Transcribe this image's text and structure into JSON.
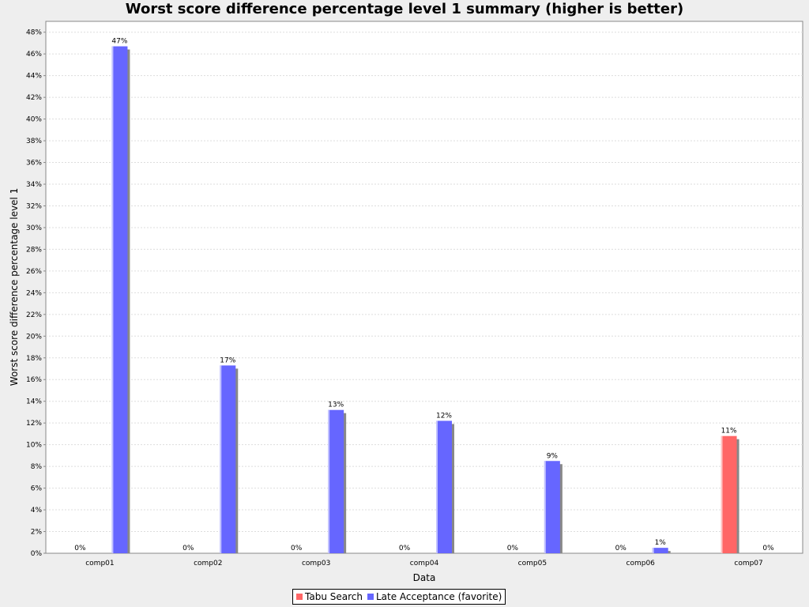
{
  "chart_data": {
    "type": "bar",
    "title": "Worst score difference percentage level 1 summary (higher is better)",
    "xlabel": "Data",
    "ylabel": "Worst score difference percentage level 1",
    "categories": [
      "comp01",
      "comp02",
      "comp03",
      "comp04",
      "comp05",
      "comp06",
      "comp07"
    ],
    "series": [
      {
        "name": "Tabu Search",
        "color": "#ff6666",
        "values": [
          0,
          0,
          0,
          0,
          0,
          0,
          10.8
        ],
        "labels": [
          "0%",
          "0%",
          "0%",
          "0%",
          "0%",
          "0%",
          "11%"
        ]
      },
      {
        "name": "Late Acceptance (favorite)",
        "color": "#6666ff",
        "values": [
          46.7,
          17.3,
          13.2,
          12.2,
          8.5,
          0.5,
          0
        ],
        "labels": [
          "47%",
          "17%",
          "13%",
          "12%",
          "9%",
          "1%",
          "0%"
        ]
      }
    ],
    "ylim": [
      0,
      49
    ],
    "yticks": [
      0,
      2,
      4,
      6,
      8,
      10,
      12,
      14,
      16,
      18,
      20,
      22,
      24,
      26,
      28,
      30,
      32,
      34,
      36,
      38,
      40,
      42,
      44,
      46,
      48
    ],
    "ytick_format": "{v}%",
    "grid": true,
    "legend_position": "bottom"
  }
}
